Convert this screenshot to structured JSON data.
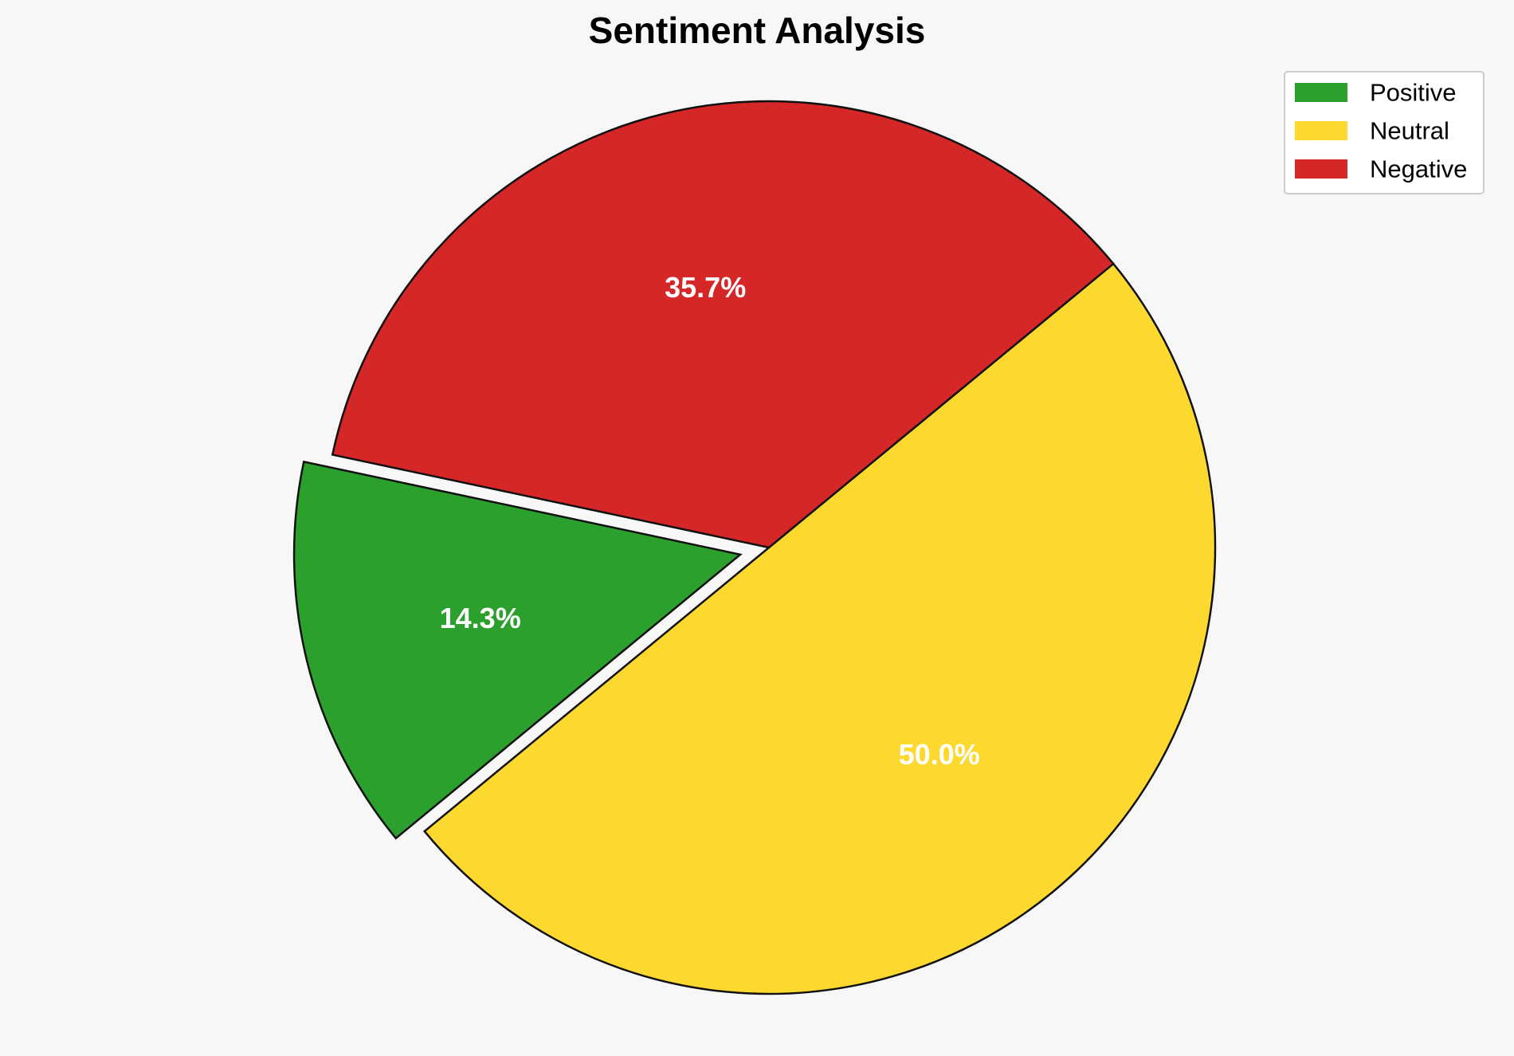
{
  "chart_data": {
    "type": "pie",
    "title": "Sentiment Analysis",
    "categories": [
      "Positive",
      "Neutral",
      "Negative"
    ],
    "values": [
      14.3,
      50.0,
      35.7
    ],
    "labels": [
      "14.3%",
      "50.0%",
      "35.7%"
    ],
    "colors": [
      "#2ca02c",
      "#fdd930",
      "#d62728"
    ],
    "exploded": [
      true,
      false,
      false
    ],
    "legend": {
      "placement": "top-right",
      "entries": [
        "Positive",
        "Neutral",
        "Negative"
      ]
    }
  }
}
